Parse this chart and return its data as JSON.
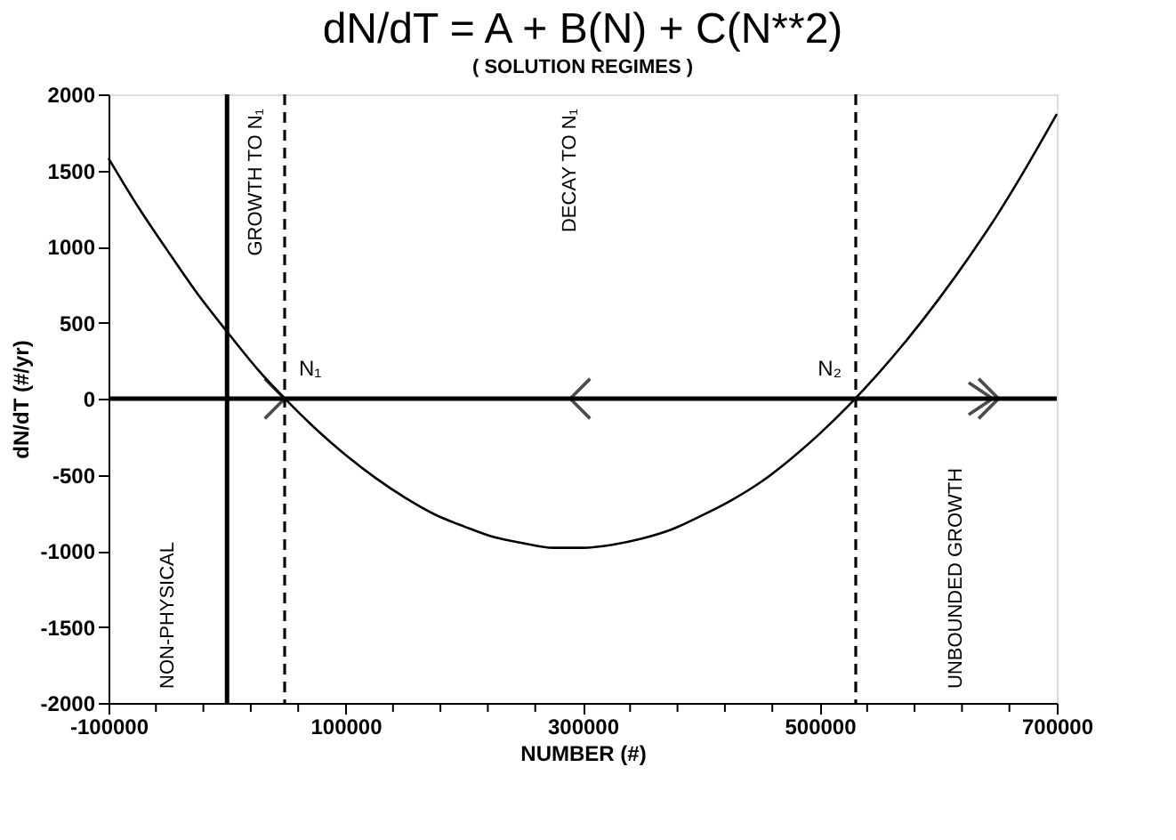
{
  "chart_data": {
    "type": "line",
    "title": "dN/dT = A + B(N) + C(N**2)",
    "subtitle": "( SOLUTION REGIMES )",
    "xlabel": "NUMBER (#)",
    "ylabel": "dN/dT (#/yr)",
    "x": [
      -100000,
      -75000,
      -50000,
      -25000,
      0,
      25000,
      50000,
      75000,
      100000,
      125000,
      150000,
      175000,
      200000,
      225000,
      250000,
      275000,
      300000,
      325000,
      350000,
      375000,
      400000,
      425000,
      450000,
      475000,
      500000,
      525000,
      550000,
      575000,
      600000,
      625000,
      650000,
      675000,
      700000
    ],
    "series": [
      {
        "color": "#000000",
        "values": [
          1580,
          1260,
          970,
          690,
          440,
          200,
          -10,
          -200,
          -370,
          -520,
          -650,
          -760,
          -840,
          -910,
          -950,
          -980,
          -980,
          -960,
          -920,
          -860,
          -770,
          -670,
          -550,
          -400,
          -230,
          -40,
          170,
          400,
          650,
          920,
          1210,
          1530,
          1870
        ]
      }
    ],
    "xlim": [
      -100000,
      700000
    ],
    "xticks": [
      -100000,
      {
        "value": -60000,
        "label": null
      },
      {
        "value": -20000,
        "label": null
      },
      {
        "value": 20000,
        "label": null
      },
      {
        "value": 60000,
        "label": null
      },
      100000,
      {
        "value": 140000,
        "label": null
      },
      {
        "value": 180000,
        "label": null
      },
      {
        "value": 220000,
        "label": null
      },
      {
        "value": 260000,
        "label": null
      },
      300000,
      {
        "value": 340000,
        "label": null
      },
      {
        "value": 380000,
        "label": null
      },
      {
        "value": 420000,
        "label": null
      },
      {
        "value": 460000,
        "label": null
      },
      500000,
      {
        "value": 540000,
        "label": null
      },
      {
        "value": 580000,
        "label": null
      },
      {
        "value": 620000,
        "label": null
      },
      {
        "value": 660000,
        "label": null
      },
      700000
    ],
    "ylim": [
      -2000,
      2000
    ],
    "yticks": [
      -2000,
      -1500,
      -1000,
      -500,
      0,
      500,
      1000,
      1500,
      2000
    ],
    "ref_lines": [
      {
        "axis": "y",
        "value": 0,
        "label": null,
        "line_style": "solid"
      },
      {
        "axis": "x",
        "value": 0,
        "label": null,
        "line_style": "solid"
      },
      {
        "axis": "x",
        "value": 48600,
        "label": "N₁",
        "line_style": "dashed"
      },
      {
        "axis": "x",
        "value": 530400,
        "label": "N₂",
        "line_style": "dashed"
      }
    ],
    "annotations": [
      "NON-PHYSICAL",
      "GROWTH TO N₁",
      "DECAY TO N₁",
      "UNBOUNDED GROWTH"
    ],
    "grid": false,
    "marker": "none",
    "line_style": "solid"
  }
}
